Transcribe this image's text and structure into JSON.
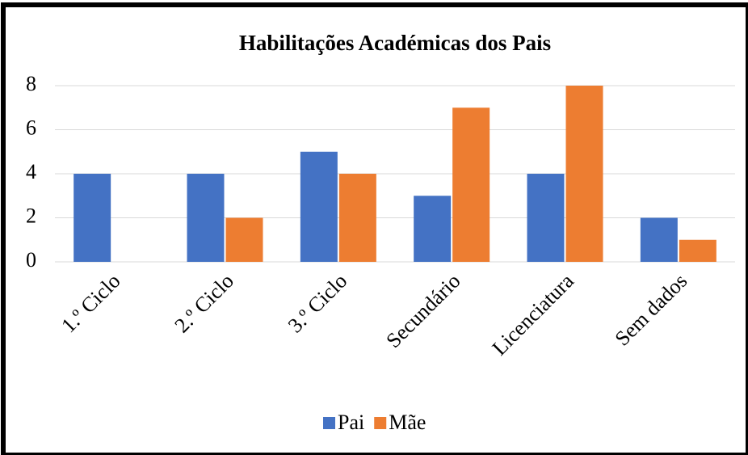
{
  "chart_data": {
    "type": "bar",
    "title": "Habilitações Académicas dos Pais",
    "categories": [
      "1.º Ciclo",
      "2.º Ciclo",
      "3.º Ciclo",
      "Secundário",
      "Licenciatura",
      "Sem dados"
    ],
    "series": [
      {
        "name": "Pai",
        "color": "#4472c4",
        "values": [
          4,
          4,
          5,
          3,
          4,
          2
        ]
      },
      {
        "name": "Mãe",
        "color": "#ed7d31",
        "values": [
          0,
          2,
          4,
          7,
          8,
          1
        ]
      }
    ],
    "ylim": [
      0,
      8
    ],
    "yticks": [
      0,
      2,
      4,
      6,
      8
    ],
    "grid": true,
    "legend": "bottom"
  }
}
